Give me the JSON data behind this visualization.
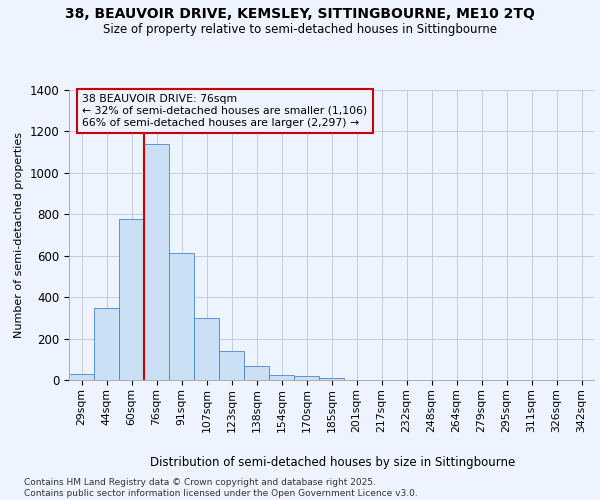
{
  "title_line1": "38, BEAUVOIR DRIVE, KEMSLEY, SITTINGBOURNE, ME10 2TQ",
  "title_line2": "Size of property relative to semi-detached houses in Sittingbourne",
  "xlabel": "Distribution of semi-detached houses by size in Sittingbourne",
  "ylabel": "Number of semi-detached properties",
  "categories": [
    "29sqm",
    "44sqm",
    "60sqm",
    "76sqm",
    "91sqm",
    "107sqm",
    "123sqm",
    "138sqm",
    "154sqm",
    "170sqm",
    "185sqm",
    "201sqm",
    "217sqm",
    "232sqm",
    "248sqm",
    "264sqm",
    "279sqm",
    "295sqm",
    "311sqm",
    "326sqm",
    "342sqm"
  ],
  "values": [
    30,
    350,
    775,
    1140,
    615,
    300,
    140,
    70,
    25,
    18,
    10,
    0,
    0,
    0,
    0,
    0,
    0,
    0,
    0,
    0,
    0
  ],
  "bar_color": "#cce0f5",
  "bar_edge_color": "#4488cc",
  "vline_color": "#cc0000",
  "vline_index": 3,
  "annotation_title": "38 BEAUVOIR DRIVE: 76sqm",
  "annotation_line2": "← 32% of semi-detached houses are smaller (1,106)",
  "annotation_line3": "66% of semi-detached houses are larger (2,297) →",
  "annotation_box_color": "#cc0000",
  "ylim": [
    0,
    1400
  ],
  "yticks": [
    0,
    200,
    400,
    600,
    800,
    1000,
    1200,
    1400
  ],
  "footer_line1": "Contains HM Land Registry data © Crown copyright and database right 2025.",
  "footer_line2": "Contains public sector information licensed under the Open Government Licence v3.0.",
  "background_color": "#eef4ff",
  "grid_color": "#c0cce0"
}
